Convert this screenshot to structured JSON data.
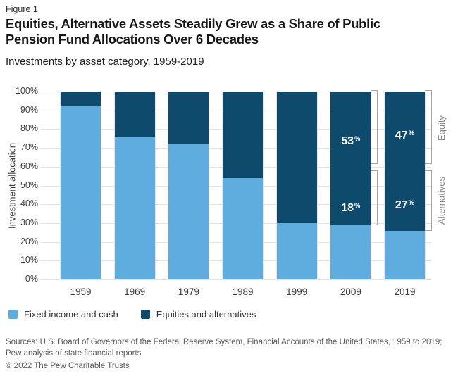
{
  "figure_label": "Figure 1",
  "title_lines": [
    "Equities, Alternative Assets Steadily Grew as a Share of Public",
    "Pension Fund Allocations Over 6 Decades"
  ],
  "subtitle": "Investments by asset category, 1959-2019",
  "chart_data": {
    "type": "bar",
    "stacked": true,
    "categories": [
      "1959",
      "1969",
      "1979",
      "1989",
      "1999",
      "2009",
      "2019"
    ],
    "series": [
      {
        "name": "Fixed income and cash",
        "color": "#5FACDE",
        "values": [
          92,
          76,
          72,
          54,
          30,
          29,
          26
        ]
      },
      {
        "name": "Equities and alternatives",
        "color": "#0E4A6B",
        "values": [
          8,
          24,
          28,
          46,
          70,
          71,
          74
        ]
      }
    ],
    "bar_labels": [
      {
        "category": "2009",
        "equity": 53,
        "alternatives": 18
      },
      {
        "category": "2019",
        "equity": 47,
        "alternatives": 27
      }
    ],
    "annotations": {
      "equity_label": "Equity",
      "alternatives_label": "Alternatives"
    },
    "ylabel": "Investment allocation",
    "yticks": [
      "100%",
      "90%",
      "80%",
      "70%",
      "60%",
      "50%",
      "40%",
      "30%",
      "20%",
      "10%",
      "0%"
    ],
    "ylim": [
      0,
      100
    ],
    "grid": "horizontal",
    "legend_position": "bottom"
  },
  "legend": [
    {
      "label": "Fixed income and cash",
      "color": "#5FACDE"
    },
    {
      "label": "Equities and alternatives",
      "color": "#0E4A6B"
    }
  ],
  "sources": "Sources: U.S. Board of Governors of the Federal Reserve System, Financial Accounts of the United States, 1959 to 2019; Pew analysis of state financial reports",
  "copyright": "© 2022 The Pew Charitable Trusts"
}
